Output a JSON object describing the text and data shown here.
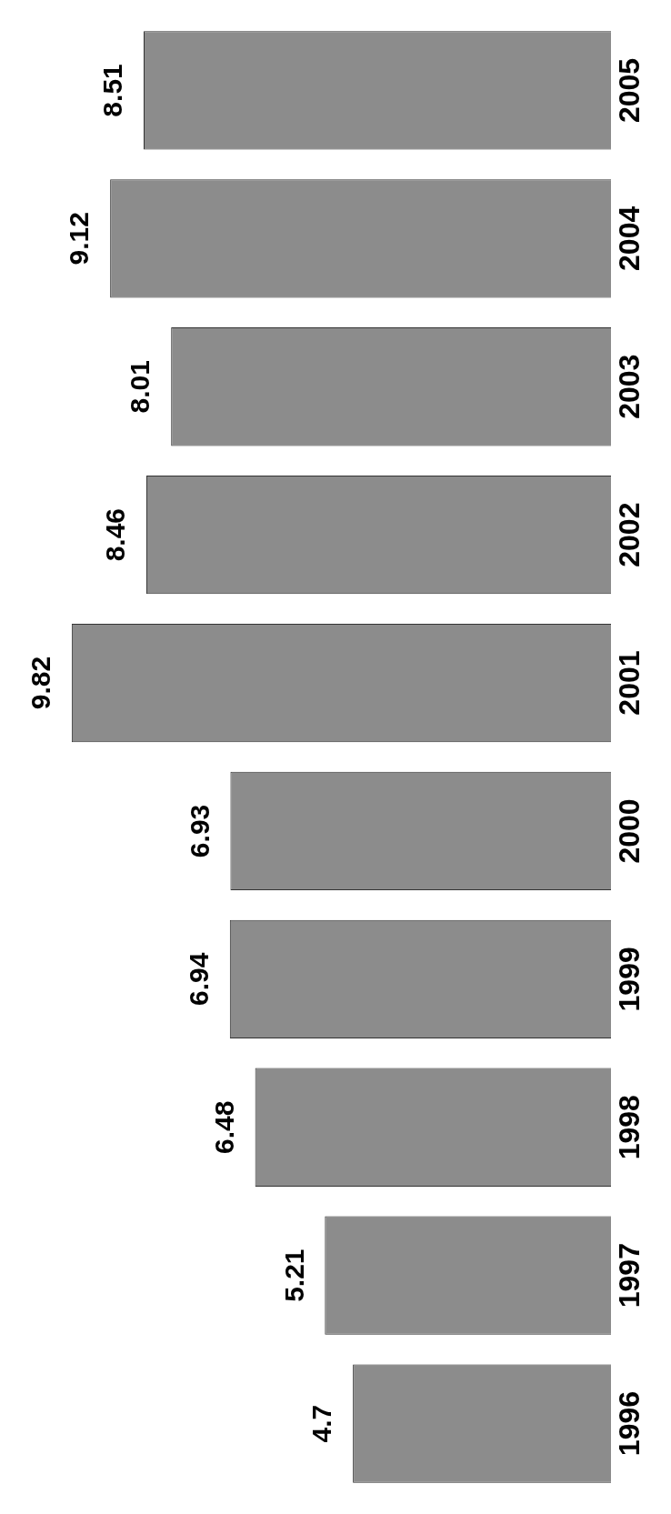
{
  "chart_data": {
    "type": "bar",
    "orientation": "horizontal",
    "categories": [
      "2005",
      "2004",
      "2003",
      "2002",
      "2001",
      "2000",
      "1999",
      "1998",
      "1997",
      "1996"
    ],
    "values": [
      8.51,
      9.12,
      8.01,
      8.46,
      9.82,
      6.93,
      6.94,
      6.48,
      5.21,
      4.7
    ],
    "color": "#8c8c8c",
    "data_labels": true
  }
}
